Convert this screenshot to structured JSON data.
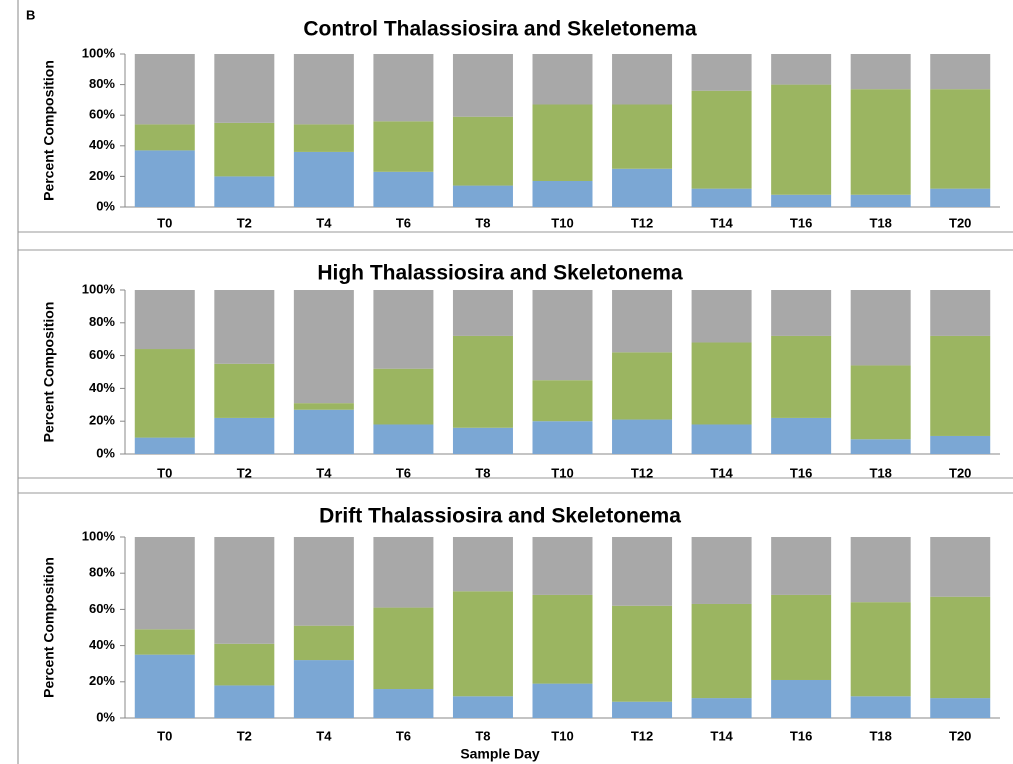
{
  "panel_label": "B",
  "chart_data": [
    {
      "type": "stacked-bar",
      "title": "Control Thalassiosira and Skeletonema",
      "ylabel": "Percent Composition",
      "categories": [
        "T0",
        "T2",
        "T4",
        "T6",
        "T8",
        "T10",
        "T12",
        "T14",
        "T16",
        "T18",
        "T20"
      ],
      "series": [
        {
          "color": "#7ba7d4",
          "values": [
            37,
            20,
            36,
            23,
            14,
            17,
            25,
            12,
            8,
            8,
            12
          ]
        },
        {
          "color": "#9bb561",
          "values": [
            17,
            35,
            18,
            33,
            45,
            50,
            42,
            64,
            72,
            69,
            65
          ]
        },
        {
          "color": "#a8a8a8",
          "values": [
            46,
            45,
            46,
            44,
            41,
            33,
            33,
            24,
            20,
            23,
            23
          ]
        }
      ],
      "ylim": [
        0,
        100
      ],
      "yticks": [
        {
          "value": 0,
          "label": "0%"
        },
        {
          "value": 20,
          "label": "20%"
        },
        {
          "value": 40,
          "label": "40%"
        },
        {
          "value": 60,
          "label": "60%"
        },
        {
          "value": 80,
          "label": "80%"
        },
        {
          "value": 100,
          "label": "100%"
        }
      ]
    },
    {
      "type": "stacked-bar",
      "title": "High Thalassiosira and Skeletonema",
      "ylabel": "Percent Composition",
      "categories": [
        "T0",
        "T2",
        "T4",
        "T6",
        "T8",
        "T10",
        "T12",
        "T14",
        "T16",
        "T18",
        "T20"
      ],
      "series": [
        {
          "color": "#7ba7d4",
          "values": [
            10,
            22,
            27,
            18,
            16,
            20,
            21,
            18,
            22,
            9,
            11
          ]
        },
        {
          "color": "#9bb561",
          "values": [
            54,
            33,
            4,
            34,
            56,
            25,
            41,
            50,
            50,
            45,
            61
          ]
        },
        {
          "color": "#a8a8a8",
          "values": [
            36,
            45,
            69,
            48,
            28,
            55,
            38,
            32,
            28,
            46,
            28
          ]
        }
      ],
      "ylim": [
        0,
        100
      ],
      "yticks": [
        {
          "value": 0,
          "label": "0%"
        },
        {
          "value": 20,
          "label": "20%"
        },
        {
          "value": 40,
          "label": "40%"
        },
        {
          "value": 60,
          "label": "60%"
        },
        {
          "value": 80,
          "label": "80%"
        },
        {
          "value": 100,
          "label": "100%"
        }
      ]
    },
    {
      "type": "stacked-bar",
      "title": "Drift Thalassiosira and Skeletonema",
      "ylabel": "Percent Composition",
      "xlabel": "Sample Day",
      "categories": [
        "T0",
        "T2",
        "T4",
        "T6",
        "T8",
        "T10",
        "T12",
        "T14",
        "T16",
        "T18",
        "T20"
      ],
      "series": [
        {
          "color": "#7ba7d4",
          "values": [
            35,
            18,
            32,
            16,
            12,
            19,
            9,
            11,
            21,
            12,
            11
          ]
        },
        {
          "color": "#9bb561",
          "values": [
            14,
            23,
            19,
            45,
            58,
            49,
            53,
            52,
            47,
            52,
            56
          ]
        },
        {
          "color": "#a8a8a8",
          "values": [
            51,
            59,
            49,
            39,
            30,
            32,
            38,
            37,
            32,
            36,
            33
          ]
        }
      ],
      "ylim": [
        0,
        100
      ],
      "yticks": [
        {
          "value": 0,
          "label": "0%"
        },
        {
          "value": 20,
          "label": "20%"
        },
        {
          "value": 40,
          "label": "40%"
        },
        {
          "value": 60,
          "label": "60%"
        },
        {
          "value": 80,
          "label": "80%"
        },
        {
          "value": 100,
          "label": "100%"
        }
      ]
    }
  ]
}
